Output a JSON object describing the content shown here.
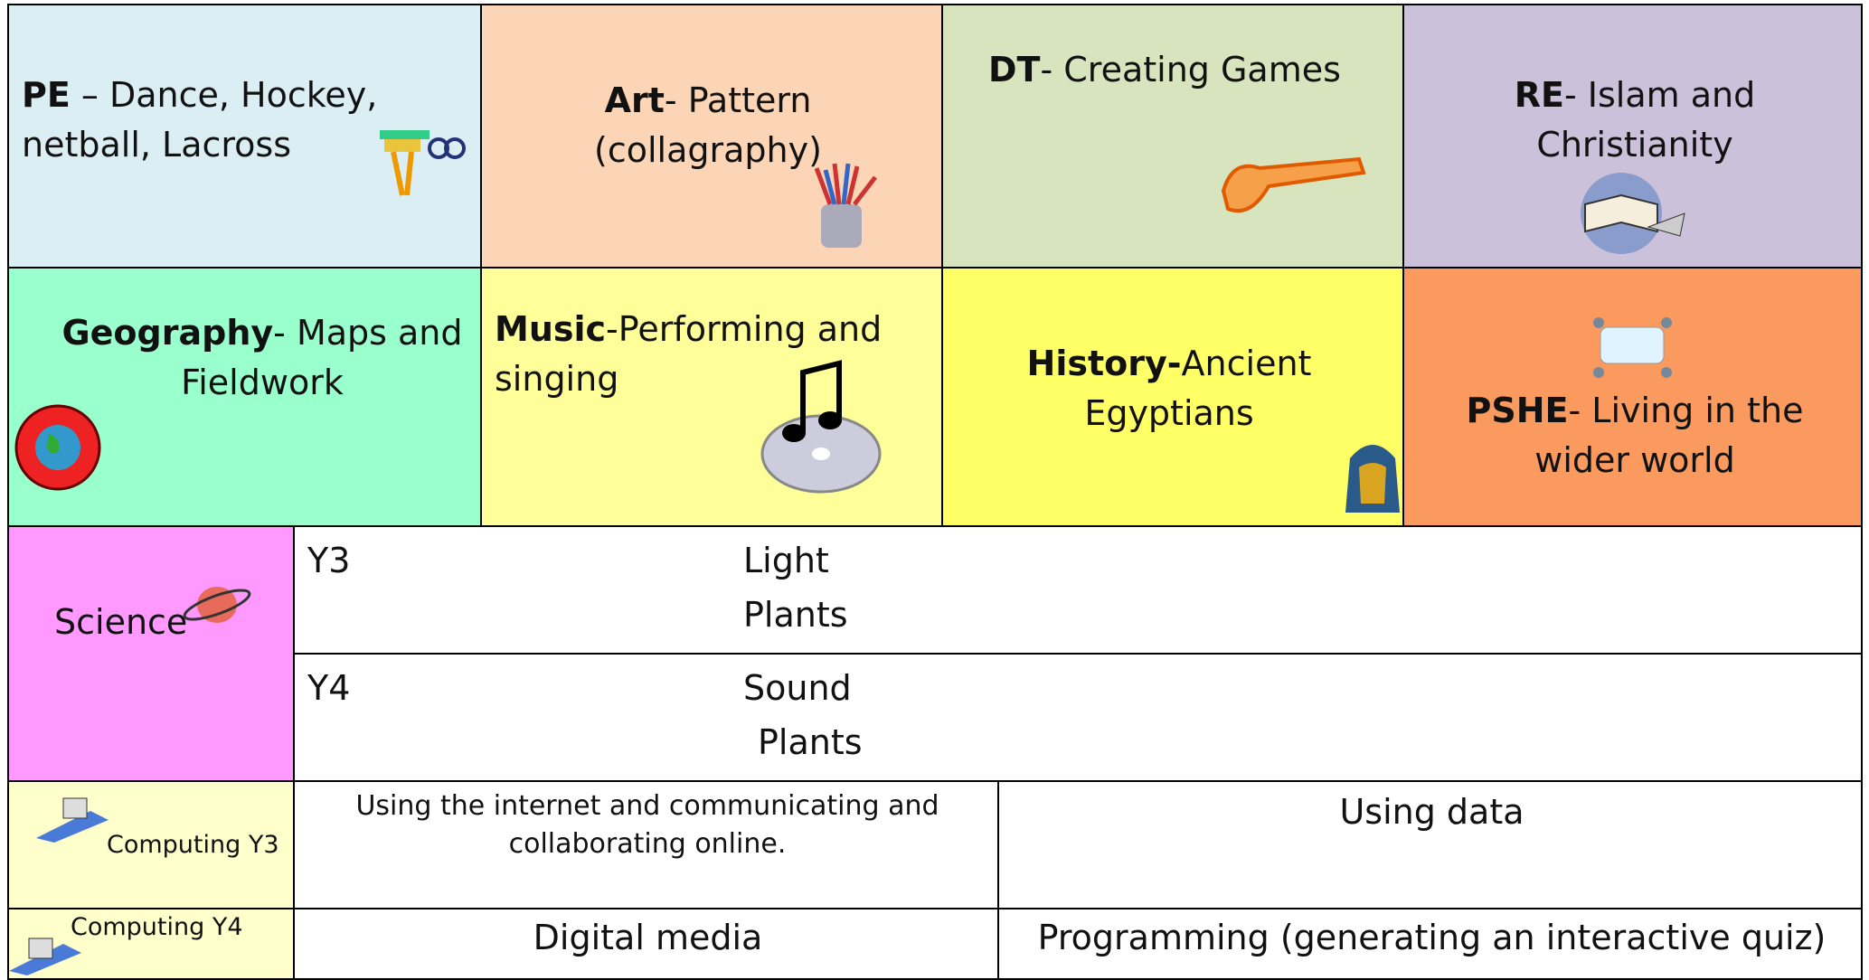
{
  "topics": [
    {
      "bold": "PE",
      "text": " –  Dance, Hockey, netball, Lacross"
    },
    {
      "bold": "Art",
      "text": "- Pattern (collagraphy)"
    },
    {
      "bold": "DT",
      "text": "- Creating  Games"
    },
    {
      "bold": "RE",
      "text": "- Islam and Christianity"
    },
    {
      "bold": "Geography",
      "text": "- Maps and Fieldwork"
    },
    {
      "bold": "Music",
      "text": "-Performing and singing"
    },
    {
      "bold": "History-",
      "text": "Ancient Egyptians"
    },
    {
      "bold": "PSHE",
      "text": "- Living in the wider world"
    }
  ],
  "science": {
    "label": "Science",
    "rows": [
      {
        "year": "Y3",
        "lines": [
          "Light",
          "Plants"
        ]
      },
      {
        "year": "Y4",
        "lines": [
          "Sound",
          "Plants"
        ]
      }
    ]
  },
  "computing": [
    {
      "label": "Computing Y3",
      "cells": [
        "Using the internet and communicating and collaborating online.",
        "Using data"
      ]
    },
    {
      "label": "Computing Y4",
      "cells": [
        "Digital media",
        "Programming (generating an interactive quiz)"
      ]
    }
  ]
}
